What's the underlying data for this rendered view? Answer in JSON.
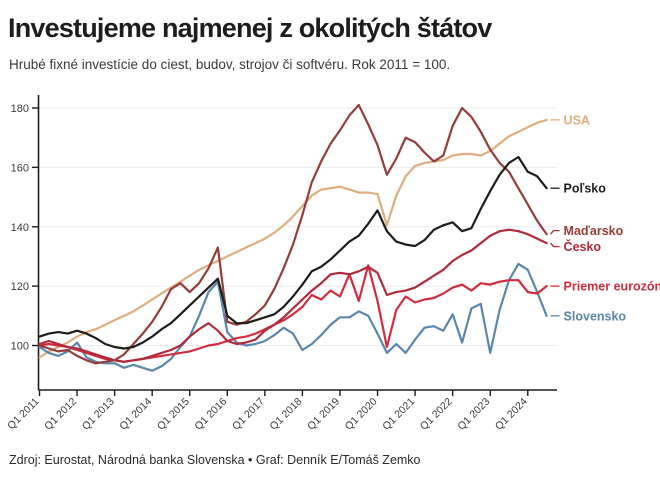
{
  "header": {
    "title": "Investujeme najmenej z okolitých štátov",
    "subtitle": "Hrubé fixné investície do ciest, budov, strojov či softvéru. Rok 2011 = 100."
  },
  "footer": {
    "source": "Zdroj: Eurostat, Národná banka Slovenska • Graf: Denník E/Tomáš Zemko"
  },
  "chart_data": {
    "type": "line",
    "x_unit": "quarter",
    "x_start": "Q1 2011",
    "x_end": "Q3 2024",
    "x_tick_labels": [
      "Q1 2011",
      "Q1 2012",
      "Q1 2013",
      "Q1 2014",
      "Q1 2015",
      "Q1 2016",
      "Q1 2017",
      "Q1 2018",
      "Q1 2019",
      "Q1 2020",
      "Q1 2021",
      "Q1 2022",
      "Q1 2023",
      "Q1 2024"
    ],
    "x_tick_every_n_points": 4,
    "y_ticks": [
      100,
      120,
      140,
      160,
      180
    ],
    "ylim": [
      85,
      183
    ],
    "grid": "horizontal",
    "legend_position": "right-of-line-ends",
    "axis_color": "#1d1d1b",
    "grid_color": "#ececec",
    "tick_label_color": "#3c3c3c",
    "series": [
      {
        "name": "USA",
        "color": "#dfae7e",
        "values": [
          96,
          98,
          99.5,
          101,
          103,
          104.5,
          105.5,
          107,
          108.5,
          110,
          111.5,
          113.5,
          115.5,
          117.5,
          119.5,
          121.5,
          123.5,
          125.5,
          127,
          128.5,
          130,
          131.5,
          133,
          134.5,
          136,
          138,
          140.5,
          143.5,
          147,
          150.5,
          152.5,
          153,
          153.5,
          152.5,
          151.5,
          151.5,
          151,
          140.5,
          150.5,
          157,
          160.5,
          161.5,
          162,
          162.5,
          164,
          164.5,
          164.5,
          164,
          165.5,
          168,
          170.5,
          172,
          173.5,
          175,
          176
        ]
      },
      {
        "name": "Slovensko",
        "color": "#5b86ad",
        "values": [
          99.5,
          97.5,
          96.5,
          98,
          101,
          96,
          94.5,
          94,
          94,
          92.5,
          93.5,
          92.5,
          91.5,
          93,
          95.5,
          99.5,
          103,
          110,
          118,
          121.5,
          104.5,
          101,
          100,
          100.5,
          101.5,
          103.5,
          106,
          104,
          98.5,
          100.5,
          103.5,
          107,
          109.5,
          109.5,
          111.5,
          110,
          104,
          97.5,
          100.5,
          97.5,
          102,
          106,
          106.5,
          105,
          110.5,
          101,
          112.5,
          114,
          97.5,
          112,
          122,
          127.5,
          125.5,
          118,
          110
        ]
      },
      {
        "name": "Priemer eurozóny",
        "color": "#d22c3d",
        "values": [
          100,
          100.5,
          100,
          99.5,
          98.5,
          97.5,
          96.5,
          95.5,
          95,
          94.5,
          95,
          95.5,
          96,
          96.5,
          97,
          97.5,
          98,
          99,
          100,
          100.5,
          101.5,
          102.5,
          103,
          104,
          105.5,
          107,
          108.5,
          110.5,
          113,
          117,
          115.5,
          118.5,
          116.5,
          124,
          115,
          127,
          115,
          99.5,
          112,
          116.5,
          114.5,
          115.5,
          116,
          117.5,
          119.5,
          120.5,
          118.5,
          121,
          120.5,
          121.5,
          122,
          122,
          118,
          117.5,
          120
        ]
      },
      {
        "name": "Česko",
        "color": "#b02a3b",
        "values": [
          100.5,
          101.5,
          100.5,
          99.5,
          99,
          98,
          97,
          96,
          95,
          94.5,
          95,
          95.5,
          96.5,
          97.5,
          98.5,
          100,
          103,
          105.5,
          107.5,
          105,
          101.5,
          100.5,
          101,
          102,
          105,
          107,
          109.5,
          112.5,
          115.5,
          118.5,
          121,
          124,
          124.5,
          124,
          125,
          126.5,
          124.5,
          117,
          118,
          118.5,
          119.5,
          121.5,
          123.5,
          125.5,
          128.5,
          130.5,
          132,
          134.5,
          137,
          138.5,
          139,
          138.5,
          137.5,
          136,
          134.5
        ]
      },
      {
        "name": "Maďarsko",
        "color": "#963c39",
        "values": [
          100,
          99,
          98,
          98.5,
          96.5,
          95,
          94,
          94.5,
          95,
          97,
          100.5,
          104,
          108,
          113,
          119,
          121,
          118,
          121,
          126,
          133,
          108,
          107,
          108,
          110.5,
          113.5,
          119,
          126,
          134,
          144,
          155,
          162,
          168,
          172.5,
          177.5,
          181,
          174.5,
          167.5,
          157.5,
          163,
          170,
          168.5,
          165,
          162,
          164,
          174,
          180,
          177,
          172,
          166,
          161.5,
          158.5,
          153,
          147.5,
          142,
          137.5
        ]
      },
      {
        "name": "Poľsko",
        "color": "#1d1d1b",
        "values": [
          103,
          104,
          104.5,
          104,
          105,
          104,
          102.5,
          100.5,
          99.5,
          99,
          99.5,
          101,
          103,
          105.5,
          107.5,
          110.5,
          113.5,
          116.5,
          119.5,
          122.5,
          110,
          107.5,
          107.5,
          108.5,
          109.5,
          110.5,
          113,
          116.5,
          120.5,
          125,
          126.5,
          129,
          132,
          135,
          137,
          141,
          145.5,
          138.5,
          135,
          134,
          133.5,
          135.5,
          139,
          140.5,
          141.5,
          138.5,
          139.5,
          146,
          152,
          157.5,
          161.5,
          163.5,
          158.5,
          157,
          153
        ]
      }
    ]
  }
}
